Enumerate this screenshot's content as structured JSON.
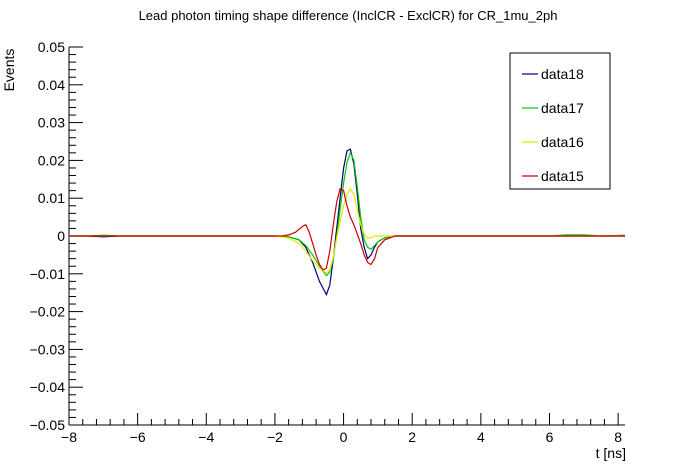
{
  "chart_data": {
    "type": "line",
    "title": "Lead photon timing shape difference (InclCR - ExclCR) for CR_1mu_2ph",
    "xlabel": "t [ns]",
    "ylabel": "Events",
    "xlim": [
      -8,
      8.2
    ],
    "ylim": [
      -0.05,
      0.05
    ],
    "x_ticks": [
      -8,
      -6,
      -4,
      -2,
      0,
      2,
      4,
      6,
      8
    ],
    "x_tick_labels": [
      "−8",
      "−6",
      "−4",
      "−2",
      "0",
      "2",
      "4",
      "6",
      "8"
    ],
    "y_ticks": [
      -0.05,
      -0.04,
      -0.03,
      -0.02,
      -0.01,
      0,
      0.01,
      0.02,
      0.03,
      0.04,
      0.05
    ],
    "y_tick_labels": [
      "−0.05",
      "−0.04",
      "−0.03",
      "−0.02",
      "−0.01",
      "0",
      "0.01",
      "0.02",
      "0.03",
      "0.04",
      "0.05"
    ],
    "grid": false,
    "legend_position": "top-right",
    "series": [
      {
        "name": "data18",
        "color": "#00007f",
        "x": [
          -8,
          -7.5,
          -7,
          -6.5,
          -6,
          -5,
          -4,
          -3,
          -2.5,
          -2,
          -1.6,
          -1.3,
          -1.1,
          -0.9,
          -0.7,
          -0.5,
          -0.4,
          -0.3,
          -0.2,
          -0.1,
          0,
          0.1,
          0.2,
          0.3,
          0.4,
          0.5,
          0.6,
          0.7,
          0.8,
          0.9,
          1.0,
          1.2,
          1.5,
          2,
          3,
          4,
          5,
          6,
          7,
          8.2
        ],
        "y": [
          0,
          0,
          -0.0002,
          0,
          0,
          0,
          0,
          0,
          0,
          0,
          -0.0002,
          -0.001,
          -0.003,
          -0.007,
          -0.012,
          -0.0155,
          -0.013,
          -0.006,
          0.002,
          0.01,
          0.018,
          0.0225,
          0.023,
          0.019,
          0.011,
          0.002,
          -0.003,
          -0.006,
          -0.005,
          -0.003,
          -0.0015,
          -0.0005,
          0,
          0,
          0,
          0,
          0,
          0,
          0,
          0
        ]
      },
      {
        "name": "data17",
        "color": "#00cc00",
        "x": [
          -8,
          -7.5,
          -7,
          -6.5,
          -6,
          -5,
          -4,
          -3,
          -2.5,
          -2,
          -1.6,
          -1.3,
          -1.1,
          -0.9,
          -0.7,
          -0.5,
          -0.4,
          -0.3,
          -0.2,
          -0.1,
          0,
          0.1,
          0.2,
          0.3,
          0.4,
          0.5,
          0.6,
          0.7,
          0.8,
          0.9,
          1.0,
          1.2,
          1.5,
          2,
          3,
          4,
          5,
          6,
          6.5,
          7,
          7.5,
          8.2
        ],
        "y": [
          0,
          0,
          0.0002,
          0,
          0,
          0,
          0,
          0,
          0,
          0,
          -0.0002,
          -0.001,
          -0.0025,
          -0.005,
          -0.008,
          -0.0105,
          -0.0095,
          -0.006,
          0,
          0.007,
          0.014,
          0.0195,
          0.022,
          0.02,
          0.013,
          0.005,
          -0.001,
          -0.003,
          -0.0035,
          -0.0025,
          -0.0015,
          -0.0005,
          0,
          0,
          0,
          0,
          0,
          0,
          0.0003,
          0.0003,
          0,
          0.0002
        ]
      },
      {
        "name": "data16",
        "color": "#e6e600",
        "x": [
          -8,
          -7,
          -6,
          -5,
          -4,
          -3,
          -2.5,
          -2,
          -1.6,
          -1.3,
          -1.1,
          -0.9,
          -0.7,
          -0.5,
          -0.4,
          -0.3,
          -0.2,
          -0.1,
          0,
          0.1,
          0.2,
          0.3,
          0.4,
          0.5,
          0.6,
          0.7,
          0.8,
          0.9,
          1.0,
          1.2,
          1.5,
          2,
          3,
          4,
          5,
          6,
          7,
          8.2
        ],
        "y": [
          0,
          0,
          0,
          0,
          0,
          0,
          0,
          0,
          -0.0005,
          -0.002,
          -0.004,
          -0.0065,
          -0.0085,
          -0.0098,
          -0.009,
          -0.0055,
          -0.0005,
          0.004,
          0.008,
          0.011,
          0.0125,
          0.011,
          0.007,
          0.003,
          0.0005,
          -0.0005,
          -0.0005,
          0,
          0,
          0,
          0,
          0,
          0,
          0,
          0,
          0,
          0,
          0
        ]
      },
      {
        "name": "data15",
        "color": "#cc0000",
        "x": [
          -8,
          -7,
          -6,
          -5,
          -4,
          -3,
          -2.5,
          -2,
          -1.8,
          -1.6,
          -1.4,
          -1.2,
          -1.1,
          -1.0,
          -0.9,
          -0.8,
          -0.7,
          -0.6,
          -0.5,
          -0.4,
          -0.3,
          -0.2,
          -0.1,
          0,
          0.1,
          0.2,
          0.3,
          0.4,
          0.5,
          0.6,
          0.7,
          0.8,
          0.9,
          1.0,
          1.2,
          1.5,
          2,
          3,
          4,
          5,
          6,
          7,
          8.2
        ],
        "y": [
          0,
          0,
          0,
          0,
          0,
          0,
          0,
          0,
          0,
          0.0003,
          0.001,
          0.0025,
          0.003,
          0.001,
          -0.002,
          -0.005,
          -0.0075,
          -0.009,
          -0.0085,
          -0.004,
          0.003,
          0.009,
          0.0125,
          0.012,
          0.008,
          0.005,
          0.003,
          0.0005,
          -0.002,
          -0.005,
          -0.007,
          -0.0075,
          -0.006,
          -0.003,
          -0.001,
          0,
          0,
          0,
          0,
          0,
          0,
          0,
          0
        ]
      }
    ]
  }
}
